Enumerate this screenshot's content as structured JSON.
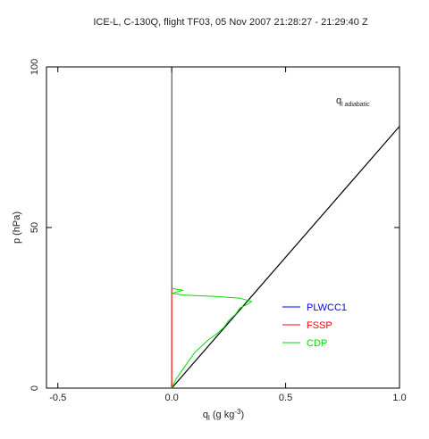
{
  "chart_data": {
    "type": "line",
    "title": "ICE-L, C-130Q, flight TF03, 05 Nov 2007  21:28:27 - 21:29:40 Z",
    "x_label": [
      "q",
      "l",
      " (g kg",
      "-3",
      ")"
    ],
    "y_label": "p (hPa)",
    "annotation": [
      "q",
      "l adiabatic"
    ],
    "xlim": [
      -0.55,
      1.0
    ],
    "ylim": [
      0,
      100
    ],
    "xticks": [
      {
        "value": -0.5,
        "label": "-0.5"
      },
      {
        "value": 0,
        "label": "0.0"
      },
      {
        "value": 0.5,
        "label": "0.5"
      },
      {
        "value": 1.0,
        "label": "1.0"
      }
    ],
    "yticks": [
      0,
      50,
      100
    ],
    "zero_line": {
      "color": "#000000",
      "x": [
        0,
        0
      ],
      "values": [
        0,
        100
      ]
    },
    "adiabatic": {
      "color": "#000000",
      "x": [
        0,
        1.0
      ],
      "values": [
        0,
        81.5
      ]
    },
    "series": [
      {
        "name": "PLWCC1",
        "color": "#0000ff",
        "x": [],
        "values": []
      },
      {
        "name": "FSSP",
        "color": "#ff0000",
        "x": [
          0,
          0
        ],
        "values": [
          0,
          31
        ]
      },
      {
        "name": "CDP",
        "color": "#00dd00",
        "x": [
          0,
          0.02,
          0.05,
          0.08,
          0.1,
          0.13,
          0.16,
          0.2,
          0.23,
          0.25,
          0.28,
          0.3,
          0.33,
          0.35,
          0.3,
          0.2,
          0.05,
          0,
          0.05,
          0
        ],
        "values": [
          0,
          3,
          6,
          9,
          11,
          13,
          15,
          17,
          19,
          21,
          23,
          25,
          26,
          27,
          28,
          28.5,
          29,
          29.5,
          30.5,
          31
        ]
      }
    ]
  }
}
